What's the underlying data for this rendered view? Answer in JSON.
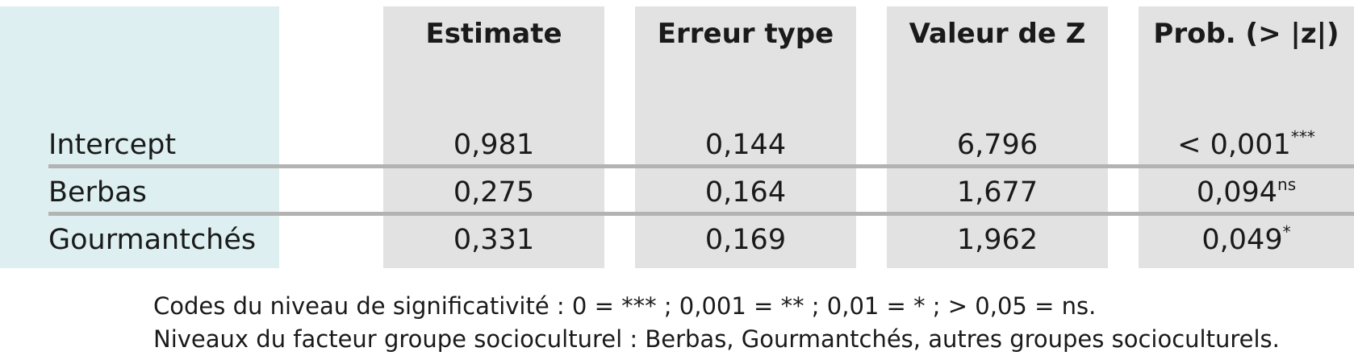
{
  "table": {
    "headers": [
      "Estimate",
      "Erreur type",
      "Valeur de Z",
      "Prob. (> |z|)"
    ],
    "rows": [
      {
        "label": "Intercept",
        "estimate": "0,981",
        "se": "0,144",
        "z": "6,796",
        "p": "< 0,001",
        "sig": "***"
      },
      {
        "label": "Berbas",
        "estimate": "0,275",
        "se": "0,164",
        "z": "1,677",
        "p": "0,094",
        "sig": "ns"
      },
      {
        "label": "Gourmantchés",
        "estimate": "0,331",
        "se": "0,169",
        "z": "1,962",
        "p": "0,049",
        "sig": "*"
      }
    ]
  },
  "notes": [
    "Codes du niveau de significativité : 0 = *** ; 0,001 = ** ; 0,01 = * ; > 0,05 = ns.",
    "Niveaux du facteur groupe socioculturel : Berbas, Gourmantchés, autres groupes socioculturels."
  ],
  "colors": {
    "label_column_bg": "#ddeff0",
    "value_column_bg": "#e2e2e2",
    "separator": "#b3b3b3"
  }
}
